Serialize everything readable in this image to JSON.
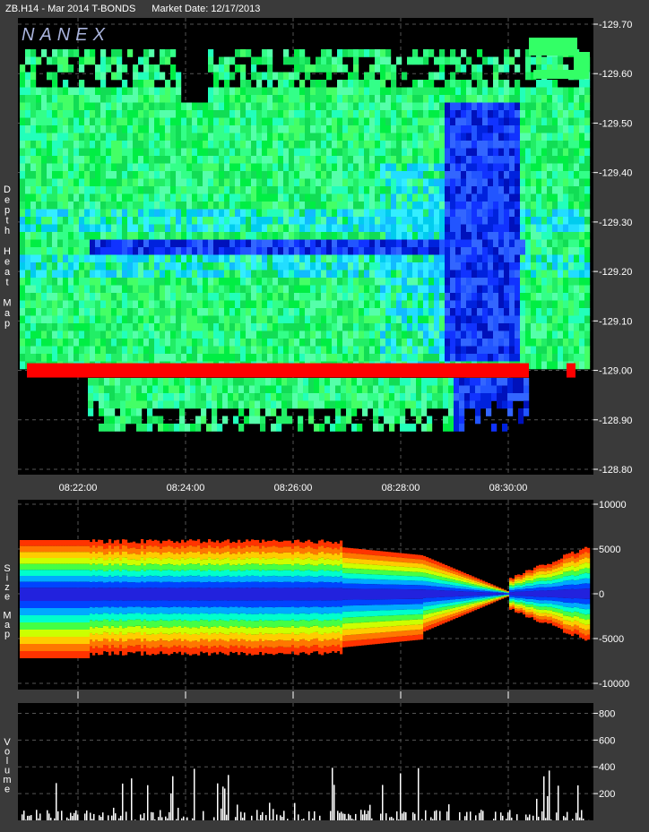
{
  "header": {
    "instrument": "ZB.H14 - Mar 2014 T-BONDS",
    "market_date": "Market Date: 12/17/2013"
  },
  "watermark": "NANEX",
  "panels": {
    "depth": {
      "label": "Depth Heat Map"
    },
    "size": {
      "label": "Size Map"
    },
    "volume": {
      "label": "Volume"
    }
  },
  "colors": {
    "panel_bg": "#000000",
    "frame_bg": "#3a3a3a",
    "grid": "#555555",
    "price_line": "#ff0000",
    "volume_bar": "#ffffff"
  },
  "chart_data": [
    {
      "type": "heatmap",
      "title": "Depth Heat Map",
      "x_ticks": [
        "08:22:00",
        "08:24:00",
        "08:26:00",
        "08:28:00",
        "08:30:00"
      ],
      "y_ticks": [
        "129.70",
        "129.60",
        "129.50",
        "129.40",
        "129.30",
        "129.20",
        "129.10",
        "129.00",
        "128.90",
        "128.80"
      ],
      "ylim": [
        128.8,
        129.7
      ],
      "price_level": 129.0,
      "grid": true
    },
    {
      "type": "area",
      "title": "Size Map",
      "x_ticks": [
        "08:22:00",
        "08:24:00",
        "08:26:00",
        "08:28:00",
        "08:30:00"
      ],
      "y_ticks": [
        "10000",
        "5000",
        "0",
        "-5000",
        "-10000"
      ],
      "ylim": [
        -10000,
        10000
      ],
      "grid": true
    },
    {
      "type": "bar",
      "title": "Volume",
      "y_ticks": [
        "800",
        "600",
        "400",
        "200"
      ],
      "ylim": [
        0,
        850
      ],
      "grid": true
    }
  ]
}
